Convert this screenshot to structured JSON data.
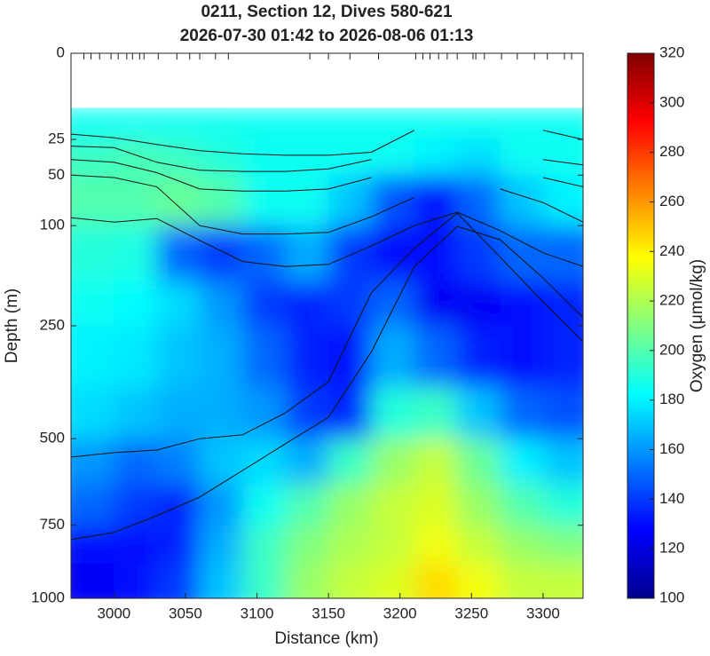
{
  "chart_data": {
    "type": "contourf",
    "title": "0211, Section 12, Dives 580-621",
    "subtitle": "2026-07-30 01:42 to 2026-08-06 01:13",
    "x_label": "Distance (km)",
    "y_label": "Depth (m)",
    "colorbar_label": "Oxygen (μmol/kg)",
    "xlim": [
      2970,
      3328
    ],
    "xticks": [
      3000,
      3050,
      3100,
      3150,
      3200,
      3250,
      3300
    ],
    "ylim": [
      0,
      1000
    ],
    "y_scale": "sqrt",
    "y_reversed": true,
    "yticks": [
      0,
      25,
      50,
      100,
      250,
      500,
      750,
      1000
    ],
    "colormap": "jet",
    "clim": [
      100,
      320
    ],
    "cticks": [
      100,
      120,
      140,
      160,
      180,
      200,
      220,
      240,
      260,
      280,
      300,
      320
    ],
    "dive_distances": [
      2979,
      2984,
      2990,
      2998,
      3003,
      3009,
      3013,
      3018,
      3021,
      3031,
      3044,
      3053,
      3060,
      3071,
      3080,
      3137,
      3150,
      3165,
      3185,
      3211,
      3216,
      3221,
      3227,
      3233,
      3240,
      3251,
      3253,
      3259,
      3271,
      3282,
      3294,
      3303,
      3315,
      3320
    ],
    "x_edges": [
      2970,
      3000,
      3030,
      3060,
      3090,
      3120,
      3150,
      3180,
      3210,
      3240,
      3270,
      3300,
      3328
    ],
    "depth_edges": [
      10,
      25,
      50,
      100,
      175,
      250,
      375,
      500,
      625,
      750,
      875,
      1000
    ],
    "oxygen": [
      [
        185,
        185,
        185,
        185,
        185,
        185,
        185,
        185,
        185,
        185,
        185,
        185
      ],
      [
        195,
        198,
        195,
        190,
        185,
        185,
        185,
        185,
        180,
        175,
        185,
        185
      ],
      [
        200,
        200,
        205,
        200,
        185,
        185,
        170,
        145,
        130,
        150,
        170,
        180
      ],
      [
        190,
        188,
        150,
        140,
        150,
        165,
        140,
        130,
        130,
        140,
        150,
        150
      ],
      [
        185,
        182,
        175,
        160,
        140,
        135,
        140,
        150,
        125,
        125,
        130,
        135
      ],
      [
        180,
        178,
        170,
        165,
        150,
        135,
        130,
        165,
        150,
        135,
        130,
        135
      ],
      [
        175,
        170,
        165,
        165,
        160,
        140,
        135,
        190,
        195,
        170,
        150,
        145
      ],
      [
        160,
        150,
        155,
        170,
        175,
        165,
        195,
        215,
        225,
        205,
        180,
        170
      ],
      [
        150,
        140,
        135,
        160,
        185,
        200,
        215,
        225,
        230,
        215,
        200,
        190
      ],
      [
        130,
        130,
        135,
        165,
        195,
        210,
        220,
        225,
        235,
        225,
        215,
        210
      ],
      [
        125,
        130,
        140,
        170,
        195,
        215,
        225,
        230,
        245,
        235,
        225,
        225
      ]
    ],
    "contour_x": [
      2970,
      3000,
      3030,
      3060,
      3090,
      3120,
      3150,
      3180,
      3210,
      3240,
      3270,
      3300,
      3328
    ],
    "contours": [
      [
        22,
        24,
        28,
        32,
        34,
        35,
        35,
        33,
        20,
        null,
        null,
        20,
        25
      ],
      [
        29,
        30,
        40,
        46,
        47,
        47,
        45,
        38,
        null,
        null,
        null,
        38,
        42
      ],
      [
        38,
        40,
        48,
        62,
        64,
        64,
        62,
        52,
        null,
        null,
        null,
        52,
        60
      ],
      [
        50,
        52,
        60,
        100,
        110,
        110,
        108,
        90,
        70,
        null,
        62,
        75,
        96
      ],
      [
        91,
        96,
        92,
        118,
        146,
        153,
        150,
        125,
        100,
        85,
        106,
        134,
        153
      ],
      [
        549,
        537,
        530,
        500,
        490,
        435,
        363,
        193,
        128,
        86,
        140,
        208,
        280
      ],
      [
        796,
        773,
        720,
        663,
        586,
        513,
        446,
        300,
        153,
        101,
        117,
        170,
        235
      ]
    ]
  }
}
